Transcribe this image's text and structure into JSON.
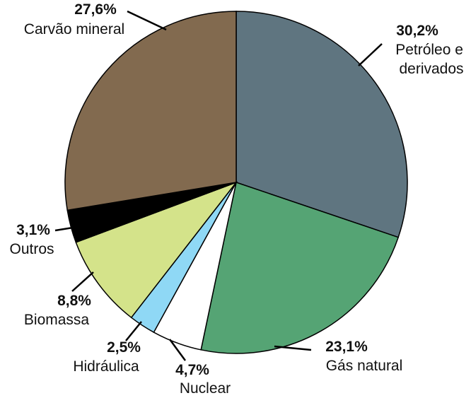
{
  "chart_data": {
    "type": "pie",
    "categories": [
      "Petróleo e derivados",
      "Gás natural",
      "Nuclear",
      "Hidráulica",
      "Biomassa",
      "Outros",
      "Carvão mineral"
    ],
    "values": [
      30.2,
      23.1,
      4.7,
      2.5,
      8.8,
      3.1,
      27.6
    ],
    "value_labels": [
      "30,2%",
      "23,1%",
      "4,7%",
      "2,5%",
      "8,8%",
      "3,1%",
      "27,6%"
    ],
    "colors": [
      "#5f7580",
      "#55a474",
      "#ffffff",
      "#8fd8f5",
      "#d4e38a",
      "#000000",
      "#826a4f"
    ]
  }
}
